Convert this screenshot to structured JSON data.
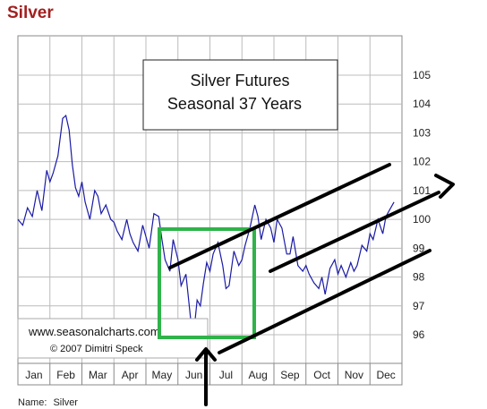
{
  "page": {
    "title": "Silver",
    "footer_label": "Name:",
    "footer_value": "Silver"
  },
  "chart_data": {
    "type": "line",
    "title": "Silver Futures",
    "subtitle": "Seasonal 37 Years",
    "watermark_line1": "www.seasonalcharts.com",
    "watermark_line2": "© 2007   Dimitri Speck",
    "categories": [
      "Jan",
      "Feb",
      "Mar",
      "Apr",
      "May",
      "Jun",
      "Jul",
      "Aug",
      "Sep",
      "Oct",
      "Nov",
      "Dec"
    ],
    "xlim": [
      0,
      12
    ],
    "ylim": [
      95,
      106
    ],
    "yticks": [
      96,
      97,
      98,
      99,
      100,
      101,
      102,
      103,
      104,
      105
    ],
    "grid": true,
    "line_color": "#1a1aa6",
    "series": [
      {
        "x": [
          0.0,
          0.15,
          0.3,
          0.45,
          0.6,
          0.75,
          0.9,
          1.0,
          1.1,
          1.25,
          1.4,
          1.5,
          1.6,
          1.7,
          1.8,
          1.9,
          2.0,
          2.1,
          2.25,
          2.4,
          2.5,
          2.6,
          2.75,
          2.9,
          3.0,
          3.1,
          3.25,
          3.4,
          3.5,
          3.6,
          3.75,
          3.9,
          4.0,
          4.1,
          4.25,
          4.4,
          4.5,
          4.6,
          4.75,
          4.85,
          5.0,
          5.1,
          5.25,
          5.4,
          5.5,
          5.6,
          5.7,
          5.8,
          5.9,
          6.0,
          6.1,
          6.25,
          6.4,
          6.5,
          6.6,
          6.75,
          6.9,
          7.0,
          7.1,
          7.25,
          7.4,
          7.5,
          7.6,
          7.75,
          7.9,
          8.0,
          8.1,
          8.25,
          8.4,
          8.5,
          8.6,
          8.75,
          8.9,
          9.0,
          9.1,
          9.25,
          9.4,
          9.5,
          9.6,
          9.75,
          9.9,
          10.0,
          10.1,
          10.25,
          10.4,
          10.5,
          10.6,
          10.75,
          10.9,
          11.0,
          11.1,
          11.25,
          11.4,
          11.5,
          11.6,
          11.75
        ],
        "y": [
          100.0,
          99.8,
          100.4,
          100.1,
          101.0,
          100.3,
          101.7,
          101.3,
          101.6,
          102.2,
          103.5,
          103.6,
          103.1,
          101.9,
          101.1,
          100.8,
          101.3,
          100.6,
          100.0,
          101.0,
          100.8,
          100.2,
          100.5,
          100.0,
          99.9,
          99.6,
          99.3,
          100.0,
          99.5,
          99.2,
          98.9,
          99.8,
          99.4,
          99.0,
          100.2,
          100.1,
          99.3,
          98.6,
          98.2,
          99.3,
          98.6,
          97.7,
          98.1,
          96.5,
          96.1,
          97.2,
          97.0,
          97.8,
          98.5,
          98.2,
          98.8,
          99.2,
          98.4,
          97.6,
          97.7,
          98.9,
          98.4,
          98.6,
          99.1,
          99.7,
          100.5,
          100.1,
          99.3,
          100.0,
          99.7,
          99.2,
          100.0,
          99.7,
          98.8,
          98.8,
          99.4,
          98.4,
          98.2,
          98.4,
          98.1,
          97.8,
          97.6,
          98.0,
          97.4,
          98.3,
          98.6,
          98.1,
          98.4,
          98.0,
          98.5,
          98.2,
          98.4,
          99.1,
          98.9,
          99.5,
          99.3,
          100.0,
          99.5,
          100.1,
          100.3,
          100.6
        ]
      }
    ]
  }
}
